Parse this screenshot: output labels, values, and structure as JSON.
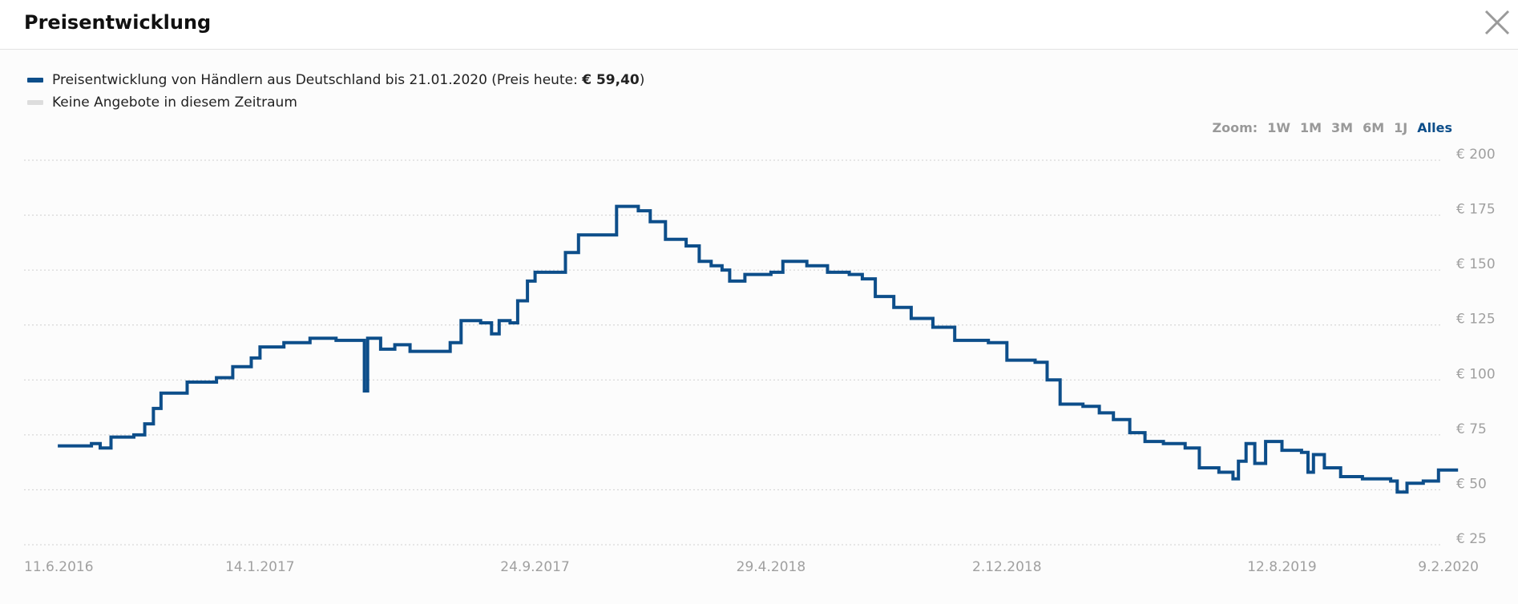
{
  "header": {
    "title": "Preisentwicklung"
  },
  "legend": {
    "series_prefix": "Preisentwicklung von Händlern aus Deutschland bis 21.01.2020 (Preis heute: ",
    "series_price": "€ 59,40",
    "series_suffix": ")",
    "series_color": "#0d4e8a",
    "no_offers_label": "Keine Angebote in diesem Zeitraum",
    "no_offers_color": "#dddddd"
  },
  "zoom": {
    "label": "Zoom:",
    "options": [
      "1W",
      "1M",
      "3M",
      "6M",
      "1J",
      "Alles"
    ],
    "active": "Alles"
  },
  "chart_data": {
    "type": "line",
    "title": "",
    "xlabel": "",
    "ylabel": "",
    "ylim": [
      25,
      200
    ],
    "y_ticks": [
      "€ 200",
      "€ 175",
      "€ 150",
      "€ 125",
      "€ 100",
      "€ 75",
      "€ 50",
      "€ 25"
    ],
    "y_tick_values": [
      200,
      175,
      150,
      125,
      100,
      75,
      50,
      25
    ],
    "x_ticks": [
      "11.6.2016",
      "14.1.2017",
      "24.9.2017",
      "29.4.2018",
      "2.12.2018",
      "12.8.2019",
      "9.2.2020"
    ],
    "x_tick_dates": [
      "2016-06-11",
      "2017-01-14",
      "2017-09-24",
      "2018-04-29",
      "2018-12-02",
      "2019-08-12",
      "2020-02-09"
    ],
    "xlim": [
      "2016-06-11",
      "2020-02-09"
    ],
    "grid": true,
    "series": [
      {
        "color": "#0d4e8a",
        "points": [
          [
            "2016-07-12",
            70
          ],
          [
            "2016-08-12",
            71
          ],
          [
            "2016-08-20",
            69
          ],
          [
            "2016-08-30",
            74
          ],
          [
            "2016-09-20",
            75
          ],
          [
            "2016-09-30",
            80
          ],
          [
            "2016-10-08",
            87
          ],
          [
            "2016-10-15",
            94
          ],
          [
            "2016-11-08",
            99
          ],
          [
            "2016-12-05",
            101
          ],
          [
            "2016-12-20",
            106
          ],
          [
            "2017-01-06",
            110
          ],
          [
            "2017-01-14",
            115
          ],
          [
            "2017-02-05",
            117
          ],
          [
            "2017-03-01",
            119
          ],
          [
            "2017-03-25",
            118
          ],
          [
            "2017-04-15",
            118
          ],
          [
            "2017-04-20",
            95
          ],
          [
            "2017-04-23",
            119
          ],
          [
            "2017-05-05",
            114
          ],
          [
            "2017-05-18",
            116
          ],
          [
            "2017-06-01",
            113
          ],
          [
            "2017-06-28",
            113
          ],
          [
            "2017-07-08",
            117
          ],
          [
            "2017-07-18",
            127
          ],
          [
            "2017-08-05",
            126
          ],
          [
            "2017-08-15",
            121
          ],
          [
            "2017-08-22",
            127
          ],
          [
            "2017-09-01",
            126
          ],
          [
            "2017-09-08",
            136
          ],
          [
            "2017-09-17",
            145
          ],
          [
            "2017-09-24",
            149
          ],
          [
            "2017-10-15",
            149
          ],
          [
            "2017-10-22",
            158
          ],
          [
            "2017-11-03",
            166
          ],
          [
            "2017-12-05",
            166
          ],
          [
            "2017-12-08",
            179
          ],
          [
            "2017-12-28",
            177
          ],
          [
            "2018-01-08",
            172
          ],
          [
            "2018-01-22",
            164
          ],
          [
            "2018-02-10",
            161
          ],
          [
            "2018-02-22",
            154
          ],
          [
            "2018-03-05",
            152
          ],
          [
            "2018-03-15",
            150
          ],
          [
            "2018-03-22",
            145
          ],
          [
            "2018-04-05",
            148
          ],
          [
            "2018-04-29",
            149
          ],
          [
            "2018-05-10",
            154
          ],
          [
            "2018-06-01",
            152
          ],
          [
            "2018-06-20",
            149
          ],
          [
            "2018-07-10",
            148
          ],
          [
            "2018-07-22",
            146
          ],
          [
            "2018-08-03",
            138
          ],
          [
            "2018-08-20",
            133
          ],
          [
            "2018-09-05",
            128
          ],
          [
            "2018-09-25",
            124
          ],
          [
            "2018-10-15",
            118
          ],
          [
            "2018-11-15",
            117
          ],
          [
            "2018-11-25",
            117
          ],
          [
            "2018-12-02",
            109
          ],
          [
            "2018-12-28",
            108
          ],
          [
            "2019-01-08",
            100
          ],
          [
            "2019-01-20",
            89
          ],
          [
            "2019-02-10",
            88
          ],
          [
            "2019-02-25",
            85
          ],
          [
            "2019-03-10",
            82
          ],
          [
            "2019-03-25",
            76
          ],
          [
            "2019-04-08",
            72
          ],
          [
            "2019-04-25",
            71
          ],
          [
            "2019-05-15",
            69
          ],
          [
            "2019-05-28",
            60
          ],
          [
            "2019-06-15",
            58
          ],
          [
            "2019-06-28",
            55
          ],
          [
            "2019-07-03",
            63
          ],
          [
            "2019-07-10",
            71
          ],
          [
            "2019-07-18",
            62
          ],
          [
            "2019-07-28",
            72
          ],
          [
            "2019-08-12",
            68
          ],
          [
            "2019-08-30",
            67
          ],
          [
            "2019-09-05",
            58
          ],
          [
            "2019-09-10",
            66
          ],
          [
            "2019-09-20",
            60
          ],
          [
            "2019-10-05",
            56
          ],
          [
            "2019-10-25",
            55
          ],
          [
            "2019-11-20",
            54
          ],
          [
            "2019-11-26",
            49
          ],
          [
            "2019-12-05",
            53
          ],
          [
            "2019-12-20",
            54
          ],
          [
            "2019-12-28",
            54
          ],
          [
            "2020-01-03",
            59
          ],
          [
            "2020-01-21",
            59
          ]
        ]
      }
    ]
  }
}
